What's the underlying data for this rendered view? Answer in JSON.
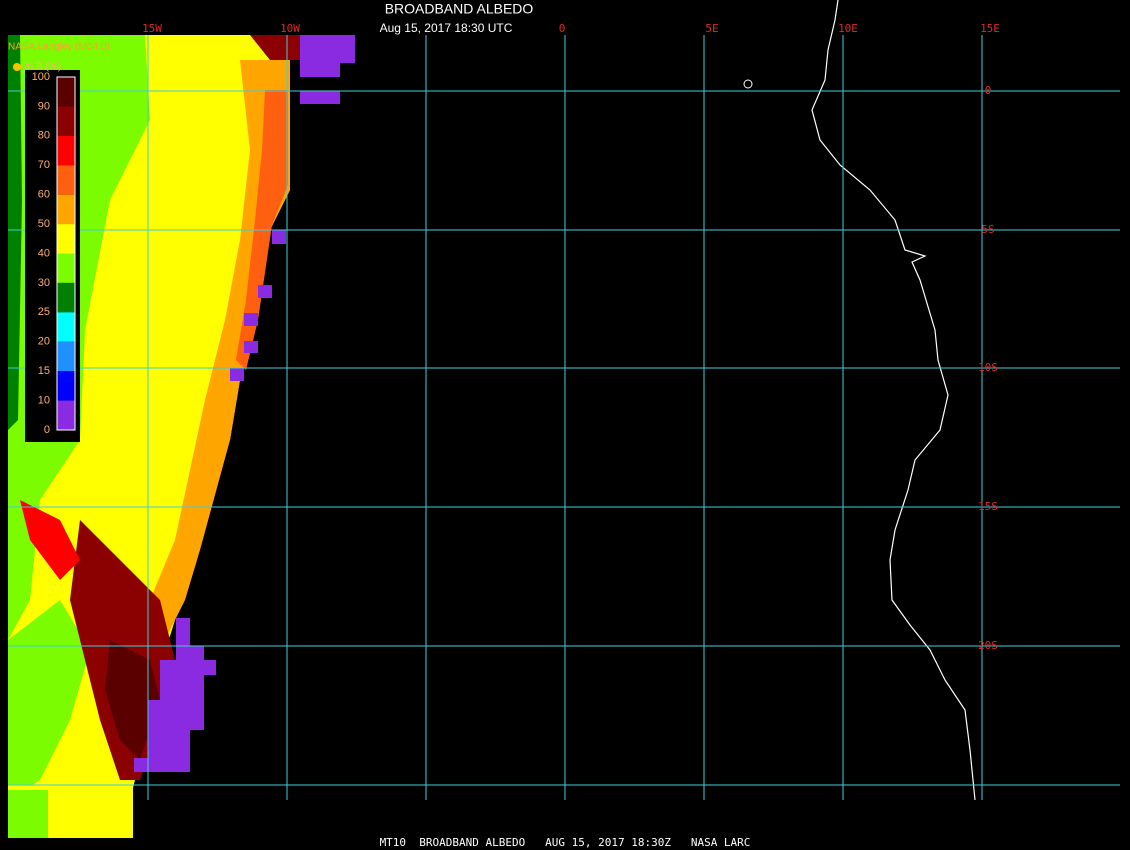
{
  "header": {
    "title": "BROADBAND ALBEDO",
    "subtitle": "Aug 15, 2017 18:30 UTC"
  },
  "credit": "NASA Langley (M04.0)",
  "legend": {
    "title": "ALB (%)",
    "ticks": [
      100,
      90,
      80,
      70,
      60,
      50,
      40,
      30,
      25,
      20,
      15,
      10,
      0
    ],
    "colors": [
      "#5a0000",
      "#8b0000",
      "#ff0000",
      "#ff6010",
      "#ffa500",
      "#ffff00",
      "#7cfc00",
      "#008000",
      "#00ffff",
      "#1e90ff",
      "#0000ff",
      "#8a2be2"
    ]
  },
  "grid": {
    "longitude_labels": [
      "15W",
      "10W",
      "0",
      "5E",
      "10E",
      "15E"
    ],
    "latitude_labels": [
      "0",
      "5S",
      "10S",
      "15S",
      "20S"
    ]
  },
  "footer": "MT10  BROADBAND ALBEDO   AUG 15, 2017 18:30Z   NASA LARC"
}
